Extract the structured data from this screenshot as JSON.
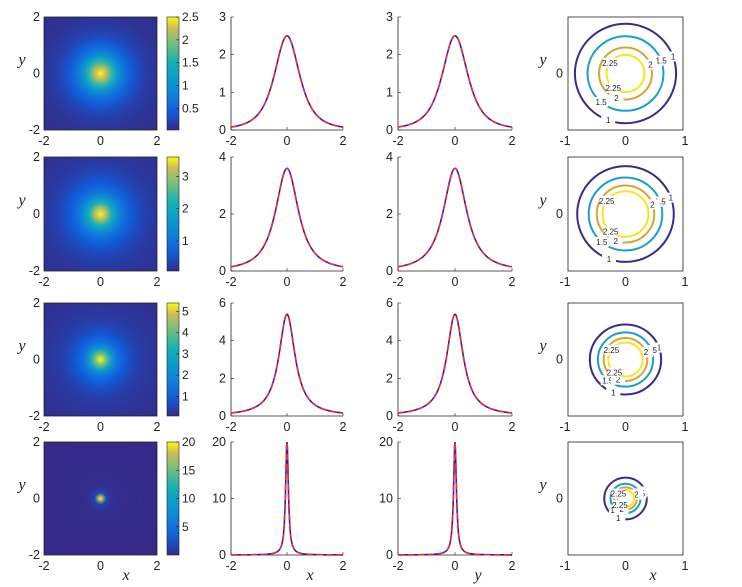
{
  "figure": {
    "colors": {
      "solid": "#1f1fd6",
      "dashed": "#ff2a1a",
      "axis": "#222222"
    },
    "axis_labels": {
      "x": "x",
      "y": "y"
    },
    "contour_colormap": [
      "#3a2a8c",
      "#1aa0c8",
      "#d7a533",
      "#f5e624"
    ]
  },
  "chart_data": [
    {
      "row": 1,
      "heatmap": {
        "type": "heatmap",
        "xlim": [
          -2,
          2
        ],
        "ylim": [
          -2,
          2
        ],
        "xticks": [
          "-2",
          "0",
          "2"
        ],
        "yticks": [
          "-2",
          "0",
          "2"
        ],
        "ylabel": "y",
        "colorbar_ticks": [
          "0.5",
          "1",
          "1.5",
          "2",
          "2.5"
        ],
        "peak": 2.5
      },
      "x_profile": {
        "type": "line",
        "xlim": [
          -2,
          2
        ],
        "ylim": [
          0,
          3
        ],
        "xticks": [
          "-2",
          "0",
          "2"
        ],
        "yticks": [
          "0",
          "1",
          "2",
          "3"
        ],
        "peak": 2.5
      },
      "y_profile": {
        "type": "line",
        "xlim": [
          -2,
          2
        ],
        "ylim": [
          0,
          3
        ],
        "xticks": [
          "-2",
          "0",
          "2"
        ],
        "yticks": [
          "0",
          "1",
          "2",
          "3"
        ],
        "peak": 2.5
      },
      "contour": {
        "type": "line",
        "xlim": [
          -1,
          1
        ],
        "ylim": [
          -1,
          1
        ],
        "xticks": [
          "-1",
          "0",
          "1"
        ],
        "yticks": [
          "0"
        ],
        "ylabel": "y",
        "levels": [
          {
            "level": "1",
            "radius": 0.88
          },
          {
            "level": "1.5",
            "radius": 0.66
          },
          {
            "level": "2",
            "radius": 0.46
          },
          {
            "level": "2.25",
            "radius": 0.33
          }
        ]
      }
    },
    {
      "row": 2,
      "heatmap": {
        "type": "heatmap",
        "xlim": [
          -2,
          2
        ],
        "ylim": [
          -2,
          2
        ],
        "xticks": [
          "-2",
          "0",
          "2"
        ],
        "yticks": [
          "-2",
          "0",
          "2"
        ],
        "ylabel": "y",
        "colorbar_ticks": [
          "1",
          "2",
          "3"
        ],
        "peak": 3.6
      },
      "x_profile": {
        "type": "line",
        "xlim": [
          -2,
          2
        ],
        "ylim": [
          0,
          4
        ],
        "xticks": [
          "-2",
          "0",
          "2"
        ],
        "yticks": [
          "0",
          "2",
          "4"
        ],
        "peak": 3.6
      },
      "y_profile": {
        "type": "line",
        "xlim": [
          -2,
          2
        ],
        "ylim": [
          0,
          4
        ],
        "xticks": [
          "-2",
          "0",
          "2"
        ],
        "yticks": [
          "0",
          "2",
          "4"
        ],
        "peak": 3.6
      },
      "contour": {
        "type": "line",
        "xlim": [
          -1,
          1
        ],
        "ylim": [
          -1,
          1
        ],
        "xticks": [
          "-1",
          "0",
          "1"
        ],
        "yticks": [
          "0"
        ],
        "ylabel": "y",
        "levels": [
          {
            "level": "1",
            "radius": 0.84
          },
          {
            "level": "1.5",
            "radius": 0.64
          },
          {
            "level": "2",
            "radius": 0.5
          },
          {
            "level": "2.25",
            "radius": 0.4
          }
        ]
      }
    },
    {
      "row": 3,
      "heatmap": {
        "type": "heatmap",
        "xlim": [
          -2,
          2
        ],
        "ylim": [
          -2,
          2
        ],
        "xticks": [
          "-2",
          "0",
          "2"
        ],
        "yticks": [
          "-2",
          "0",
          "2"
        ],
        "ylabel": "y",
        "colorbar_ticks": [
          "1",
          "2",
          "3",
          "4",
          "5"
        ],
        "peak": 5.4
      },
      "x_profile": {
        "type": "line",
        "xlim": [
          -2,
          2
        ],
        "ylim": [
          0,
          6
        ],
        "xticks": [
          "-2",
          "0",
          "2"
        ],
        "yticks": [
          "0",
          "2",
          "4",
          "6"
        ],
        "peak": 5.4
      },
      "y_profile": {
        "type": "line",
        "xlim": [
          -2,
          2
        ],
        "ylim": [
          0,
          6
        ],
        "xticks": [
          "-2",
          "0",
          "2"
        ],
        "yticks": [
          "0",
          "2",
          "4",
          "6"
        ],
        "peak": 5.4
      },
      "contour": {
        "type": "line",
        "xlim": [
          -1,
          1
        ],
        "ylim": [
          -1,
          1
        ],
        "xticks": [
          "-1",
          "0",
          "1"
        ],
        "yticks": [
          "0"
        ],
        "ylabel": "y",
        "levels": [
          {
            "level": "1",
            "radius": 0.62
          },
          {
            "level": "1.5",
            "radius": 0.48
          },
          {
            "level": "2",
            "radius": 0.38
          },
          {
            "level": "2.25",
            "radius": 0.3
          }
        ]
      }
    },
    {
      "row": 4,
      "heatmap": {
        "type": "heatmap",
        "xlim": [
          -2,
          2
        ],
        "ylim": [
          -2,
          2
        ],
        "xticks": [
          "-2",
          "0",
          "2"
        ],
        "yticks": [
          "-2",
          "0",
          "2"
        ],
        "xlabel": "x",
        "ylabel": "y",
        "colorbar_ticks": [
          "5",
          "10",
          "15",
          "20"
        ],
        "peak": 20
      },
      "x_profile": {
        "type": "line",
        "xlim": [
          -2,
          2
        ],
        "ylim": [
          0,
          20
        ],
        "xticks": [
          "-2",
          "0",
          "2"
        ],
        "yticks": [
          "0",
          "10",
          "20"
        ],
        "xlabel": "x",
        "peak": 20
      },
      "y_profile": {
        "type": "line",
        "xlim": [
          -2,
          2
        ],
        "ylim": [
          0,
          20
        ],
        "xticks": [
          "-2",
          "0",
          "2"
        ],
        "yticks": [
          "0",
          "10",
          "20"
        ],
        "xlabel": "y",
        "peak": 20
      },
      "contour": {
        "type": "line",
        "xlim": [
          -1,
          1
        ],
        "ylim": [
          -1,
          1
        ],
        "xticks": [
          "-1",
          "0",
          "1"
        ],
        "yticks": [
          "0"
        ],
        "xlabel": "x",
        "ylabel": "y",
        "levels": [
          {
            "level": "1",
            "radius": 0.37
          },
          {
            "level": "1.5",
            "radius": 0.26
          },
          {
            "level": "2",
            "radius": 0.2
          },
          {
            "level": "2.25",
            "radius": 0.15
          }
        ]
      }
    }
  ]
}
